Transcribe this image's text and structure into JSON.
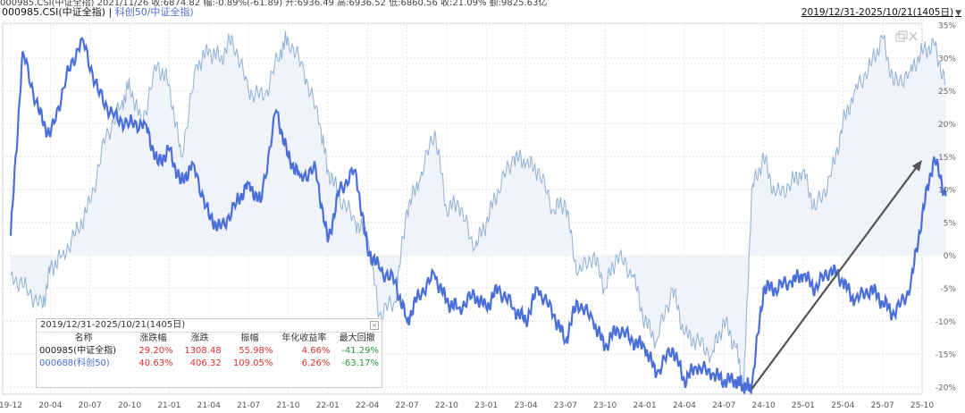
{
  "header": {
    "top_line": "000985.CSI(中证全指) 2021/11/26 收:6874.82 幅:-0.89%(-61.89) 开:6936.49 高:6936.52 低:6860.56 收:21.09% 额:9825.63亿",
    "main_label": "000985.CSI(中证全指)",
    "separator": "|",
    "compare_label": "科创50/中证全指)",
    "date_range": "2019/12/31-2025/10/21(1405日)",
    "dropdown_icon": "triangle-down-icon"
  },
  "window_icons": [
    "restore-icon",
    "close-icon"
  ],
  "stats_table": {
    "title": "2019/12/31-2025/10/21(1405日)",
    "columns": [
      "名称",
      "涨跌幅",
      "涨跌",
      "振幅",
      "年化收益率",
      "最大回撤"
    ],
    "rows": [
      {
        "name": "000985(中证全指)",
        "change_pct": "29.20%",
        "change": "1308.48",
        "amplitude": "55.98%",
        "annual_return": "4.66%",
        "max_drawdown": "-41.29%"
      },
      {
        "name": "000688(科创50)",
        "change_pct": "40.63%",
        "change": "406.32",
        "amplitude": "109.05%",
        "annual_return": "6.26%",
        "max_drawdown": "-63.17%"
      }
    ]
  },
  "colors": {
    "series_main": "#4a6fd8",
    "series_compare": "#8fb0d4",
    "area_fill": "#eef2f8",
    "arrow": "#555555",
    "up": "#e0312f",
    "down": "#2a9a3a"
  },
  "chart_data": {
    "type": "line",
    "x_ticks": [
      "19-12",
      "20-04",
      "20-07",
      "20-10",
      "21-01",
      "21-04",
      "21-07",
      "21-10",
      "22-01",
      "22-04",
      "22-07",
      "22-10",
      "23-01",
      "23-04",
      "23-07",
      "23-10",
      "24-01",
      "24-04",
      "24-07",
      "24-10",
      "25-01",
      "25-04",
      "25-07",
      "25-10"
    ],
    "y_ticks": [
      "35%",
      "30%",
      "25%",
      "20%",
      "15%",
      "10%",
      "5%",
      "0%",
      "-5%",
      "-10%",
      "-15%",
      "-20%"
    ],
    "ylim": [
      -21,
      35.5
    ],
    "grid": true,
    "series": [
      {
        "name": "000985(中证全指)",
        "x": [
          0,
          0.3,
          0.7,
          1,
          1.4,
          1.8,
          2.2,
          2.6,
          3,
          3.4,
          3.7,
          4,
          4.3,
          4.6,
          5,
          5.3,
          5.7,
          6,
          6.3,
          6.7,
          7,
          7.3,
          7.7,
          8,
          8.3,
          8.7,
          9,
          9.3,
          9.7,
          10,
          10.3,
          10.7,
          11,
          11.3,
          11.7,
          12,
          12.3,
          12.7,
          13,
          13.3,
          13.7,
          14,
          14.3,
          14.7,
          15,
          15.3,
          15.7,
          16,
          16.3,
          16.7,
          17,
          17.3,
          17.7,
          18,
          18.3,
          18.5,
          18.7,
          19,
          19.3,
          19.7,
          20,
          20.3,
          20.7,
          21,
          21.3,
          21.7,
          22,
          22.3,
          22.7,
          23,
          23.3,
          23.6
        ],
        "y": [
          3,
          31,
          22,
          18,
          27,
          33,
          25,
          21,
          20,
          20,
          14,
          16,
          11,
          14,
          6,
          4,
          8,
          11,
          8,
          22,
          15,
          12,
          13,
          2,
          10,
          13,
          1,
          -2,
          -4,
          -10,
          -6,
          -3,
          -7,
          -8,
          -6,
          -8,
          -5,
          -8,
          -10,
          -5,
          -9,
          -13,
          -7,
          -10,
          -14,
          -11,
          -13,
          -14,
          -18,
          -14,
          -19,
          -17,
          -18,
          -19,
          -19,
          -20,
          -20,
          -5,
          -5,
          -4,
          -3,
          -5,
          -2,
          -4,
          -7,
          -5,
          -7,
          -9,
          -5,
          6,
          15,
          9
        ]
      },
      {
        "name": "000688(科创50)",
        "x": [
          0,
          0.4,
          0.8,
          1,
          1.3,
          1.7,
          2,
          2.4,
          2.8,
          3,
          3.3,
          3.7,
          4,
          4.3,
          4.7,
          5,
          5.3,
          5.6,
          6,
          6.4,
          6.8,
          7,
          7.4,
          7.8,
          8,
          8.3,
          8.7,
          9,
          9.3,
          9.7,
          10,
          10.3,
          10.7,
          11,
          11.3,
          11.7,
          12,
          12.3,
          12.7,
          13,
          13.3,
          13.7,
          14,
          14.3,
          14.7,
          15,
          15.3,
          15.7,
          16,
          16.3,
          16.7,
          17,
          17.3,
          17.7,
          18,
          18.3,
          18.5,
          18.7,
          19,
          19.3,
          19.7,
          20,
          20.3,
          20.7,
          21,
          21.3,
          21.7,
          22,
          22.3,
          22.7,
          23,
          23.3,
          23.6
        ],
        "y": [
          -3,
          -5,
          -8,
          -2,
          0,
          4,
          8,
          18,
          23,
          26,
          20,
          29,
          26,
          15,
          29,
          31,
          30,
          33,
          25,
          24,
          31,
          33,
          28,
          20,
          13,
          9,
          5,
          3,
          -9,
          -7,
          7,
          11,
          19,
          7,
          8,
          1,
          5,
          10,
          15,
          14,
          13,
          7,
          8,
          -3,
          0,
          -5,
          0,
          -3,
          -10,
          -13,
          -5,
          -12,
          -13,
          -15,
          -10,
          -14,
          -20,
          10,
          15,
          9,
          11,
          13,
          7,
          12,
          20,
          25,
          29,
          33,
          26,
          28,
          31,
          32,
          26
        ]
      }
    ]
  }
}
